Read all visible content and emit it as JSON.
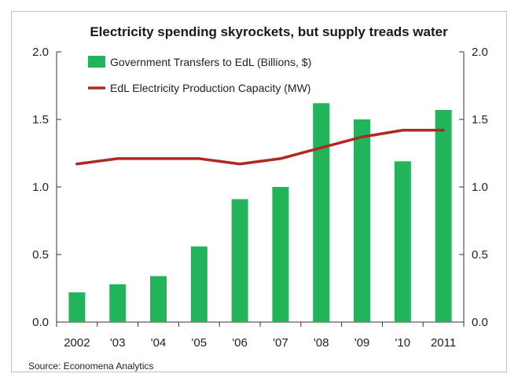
{
  "chart_data": {
    "type": "bar",
    "title": "Electricity spending skyrockets, but supply treads water",
    "categories": [
      "2002",
      "'03",
      "'04",
      "'05",
      "'06",
      "'07",
      "'08",
      "'09",
      "'10",
      "2011"
    ],
    "series": [
      {
        "name": "Government Transfers to EdL (Billions, $)",
        "type": "bar",
        "color": "#22b45a",
        "values": [
          0.22,
          0.28,
          0.34,
          0.56,
          0.91,
          1.0,
          1.62,
          1.5,
          1.19,
          1.57
        ]
      },
      {
        "name": "EdL Electricity Production Capacity (MW)",
        "type": "line",
        "color": "#b0281e",
        "values": [
          1.17,
          1.21,
          1.21,
          1.21,
          1.17,
          1.21,
          1.29,
          1.37,
          1.42,
          1.42
        ]
      }
    ],
    "ylim": [
      0,
      2.0
    ],
    "yticks": [
      "0.0",
      "0.5",
      "1.0",
      "1.5",
      "2.0"
    ],
    "y2ticks": [
      "0.0",
      "0.5",
      "1.0",
      "1.5",
      "2.0"
    ],
    "legend_position": "top-left",
    "grid": false,
    "source": "Source: Economena Analytics"
  }
}
